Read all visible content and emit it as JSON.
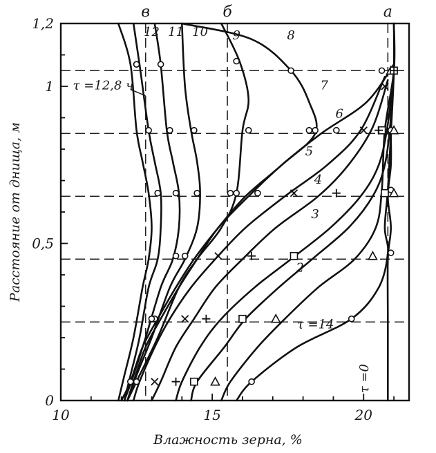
{
  "chart_data": {
    "type": "line",
    "xlabel": "Влажность зерна, %",
    "ylabel": "Расстояние от днища, м",
    "xlim": [
      10,
      21.5
    ],
    "ylim": [
      0,
      1.2
    ],
    "x_ticks": [
      "10",
      "15",
      "20"
    ],
    "y_ticks": [
      "0",
      "0,5",
      "1",
      "1,2"
    ],
    "grid": false,
    "reference_levels_y": [
      0.25,
      0.45,
      0.65,
      0.85,
      1.05
    ],
    "top_labels": [
      {
        "text": "в",
        "x": 12.8
      },
      {
        "text": "б",
        "x": 15.5
      },
      {
        "text": "а",
        "x": 20.8
      }
    ],
    "annotations": [
      {
        "text": "τ =12,8 ч",
        "x": 10.4,
        "y": 0.99
      },
      {
        "text": "τ =14",
        "x": 17.8,
        "y": 0.23
      },
      {
        "text": "τ =0",
        "x": 20.15,
        "y": 0.07
      }
    ],
    "series": [
      {
        "name": "τ =0",
        "x": [
          20.8,
          20.8,
          20.8,
          20.9,
          20.8,
          20.9,
          20.9,
          20.9,
          21.0,
          21.0
        ],
        "y": [
          0.0,
          0.25,
          0.45,
          0.55,
          0.65,
          0.75,
          0.85,
          0.95,
          1.05,
          1.2
        ],
        "markers": [
          [
            21.0,
            1.05
          ]
        ],
        "marker": "circle"
      },
      {
        "name": "1",
        "x": [
          15.8,
          16.3,
          17.8,
          19.6,
          20.5,
          20.8,
          20.7,
          20.8,
          20.9,
          21.0,
          21.0
        ],
        "y": [
          0.0,
          0.06,
          0.17,
          0.26,
          0.36,
          0.47,
          0.55,
          0.67,
          0.85,
          1.05,
          1.2
        ],
        "markers": [
          [
            16.3,
            0.06
          ],
          [
            19.6,
            0.26
          ],
          [
            20.9,
            0.47
          ],
          [
            20.9,
            0.67
          ],
          [
            20.9,
            0.86
          ]
        ],
        "marker": "circle"
      },
      {
        "name": "2",
        "x": [
          15.3,
          15.6,
          16.5,
          17.4,
          18.5,
          19.7,
          20.4,
          20.6,
          20.7,
          21.0,
          21.0
        ],
        "y": [
          0.0,
          0.06,
          0.17,
          0.26,
          0.36,
          0.45,
          0.55,
          0.67,
          0.86,
          1.05,
          1.2
        ],
        "markers": [
          [
            15.1,
            0.06
          ],
          [
            17.1,
            0.26
          ],
          [
            20.3,
            0.46
          ],
          [
            21.0,
            0.66
          ],
          [
            21.0,
            0.86
          ],
          [
            20.9,
            1.05
          ]
        ],
        "marker": "triangle"
      },
      {
        "name": "3",
        "x": [
          14.3,
          14.5,
          15.4,
          16.1,
          17.2,
          18.3,
          19.5,
          20.3,
          20.7,
          20.9,
          21.0
        ],
        "y": [
          0.0,
          0.06,
          0.17,
          0.26,
          0.36,
          0.45,
          0.55,
          0.65,
          0.75,
          0.9,
          1.05
        ],
        "markers": [
          [
            14.4,
            0.06
          ],
          [
            16.0,
            0.26
          ],
          [
            17.7,
            0.46
          ],
          [
            20.7,
            0.66
          ],
          [
            20.6,
            0.86
          ],
          [
            21.0,
            1.05
          ]
        ],
        "marker": "square"
      },
      {
        "name": "4",
        "x": [
          13.8,
          14.0,
          14.6,
          15.3,
          16.4,
          17.6,
          18.9,
          19.9,
          20.5,
          20.8,
          21.0
        ],
        "y": [
          0.0,
          0.06,
          0.17,
          0.26,
          0.36,
          0.45,
          0.55,
          0.65,
          0.75,
          0.88,
          1.05
        ],
        "markers": [
          [
            13.8,
            0.06
          ],
          [
            14.8,
            0.26
          ],
          [
            16.3,
            0.46
          ],
          [
            19.1,
            0.66
          ],
          [
            20.5,
            0.86
          ],
          [
            21.0,
            1.05
          ]
        ],
        "marker": "plus"
      },
      {
        "name": "5",
        "x": [
          13.0,
          13.3,
          13.8,
          14.4,
          15.1,
          16.0,
          17.1,
          18.5,
          19.5,
          20.3,
          20.8
        ],
        "y": [
          0.0,
          0.06,
          0.17,
          0.26,
          0.36,
          0.45,
          0.55,
          0.65,
          0.75,
          0.87,
          1.02
        ],
        "markers": [
          [
            13.1,
            0.06
          ],
          [
            14.1,
            0.26
          ],
          [
            15.2,
            0.46
          ],
          [
            17.7,
            0.66
          ],
          [
            20.0,
            0.86
          ],
          [
            20.7,
            1.0
          ]
        ],
        "marker": "cross"
      },
      {
        "name": "6",
        "x": [
          12.4,
          12.6,
          13.1,
          13.6,
          14.3,
          15.1,
          16.1,
          17.4,
          18.8,
          19.9,
          20.7
        ],
        "y": [
          0.0,
          0.06,
          0.17,
          0.26,
          0.36,
          0.45,
          0.55,
          0.65,
          0.75,
          0.86,
          1.03
        ],
        "markers": [
          [
            12.5,
            0.06
          ],
          [
            13.1,
            0.26
          ],
          [
            14.1,
            0.46
          ],
          [
            16.5,
            0.66
          ],
          [
            19.1,
            0.86
          ],
          [
            20.6,
            1.05
          ]
        ],
        "marker": "circle"
      },
      {
        "name": "7",
        "x": [
          12.2,
          12.4,
          12.8,
          13.3,
          13.9,
          14.5,
          15.2,
          16.2,
          17.3,
          18.6,
          20.1,
          21.0
        ],
        "y": [
          0.0,
          0.06,
          0.17,
          0.26,
          0.36,
          0.45,
          0.55,
          0.65,
          0.75,
          0.85,
          0.95,
          1.07
        ],
        "markers": [
          [
            12.3,
            0.06
          ],
          [
            13.0,
            0.26
          ],
          [
            13.8,
            0.46
          ],
          [
            15.8,
            0.66
          ],
          [
            18.2,
            0.86
          ]
        ],
        "marker": "circle"
      },
      {
        "name": "8",
        "x": [
          12.0,
          12.3,
          12.7,
          13.2,
          13.8,
          14.4,
          15.2,
          16.1,
          17.3,
          18.4,
          18.2,
          17.6,
          16.3,
          14.0
        ],
        "y": [
          0.0,
          0.06,
          0.17,
          0.26,
          0.36,
          0.45,
          0.55,
          0.65,
          0.75,
          0.85,
          0.95,
          1.05,
          1.15,
          1.2
        ],
        "markers": [
          [
            18.4,
            0.86
          ],
          [
            17.6,
            1.05
          ]
        ],
        "marker": "circle"
      },
      {
        "name": "9",
        "x": [
          12.2,
          12.6,
          13.2,
          13.9,
          14.5,
          15.3,
          15.8,
          16.0,
          16.2,
          15.9,
          15.3
        ],
        "y": [
          0.0,
          0.08,
          0.2,
          0.36,
          0.45,
          0.55,
          0.66,
          0.86,
          0.96,
          1.08,
          1.2
        ],
        "markers": [
          [
            15.6,
            0.66
          ],
          [
            16.2,
            0.86
          ],
          [
            15.8,
            1.08
          ]
        ],
        "marker": "circle"
      },
      {
        "name": "10",
        "x": [
          12.2,
          12.5,
          13.0,
          13.6,
          14.1,
          14.5,
          14.6,
          14.5,
          14.3,
          14.1,
          14.0
        ],
        "y": [
          0.0,
          0.08,
          0.2,
          0.36,
          0.45,
          0.55,
          0.66,
          0.76,
          0.86,
          1.0,
          1.2
        ],
        "markers": [
          [
            14.5,
            0.66
          ],
          [
            14.4,
            0.86
          ]
        ],
        "marker": "circle"
      },
      {
        "name": "11",
        "x": [
          12.1,
          12.4,
          12.8,
          13.3,
          13.7,
          13.9,
          13.9,
          13.7,
          13.5,
          13.3,
          13.1
        ],
        "y": [
          0.0,
          0.08,
          0.2,
          0.36,
          0.45,
          0.55,
          0.66,
          0.76,
          0.86,
          1.07,
          1.2
        ],
        "markers": [
          [
            13.8,
            0.66
          ],
          [
            13.6,
            0.86
          ],
          [
            13.3,
            1.07
          ]
        ],
        "marker": "circle"
      },
      {
        "name": "12",
        "x": [
          12.1,
          12.3,
          12.6,
          12.9,
          13.2,
          13.3,
          13.3,
          13.1,
          12.9,
          12.6,
          12.4
        ],
        "y": [
          0.0,
          0.08,
          0.2,
          0.36,
          0.45,
          0.55,
          0.66,
          0.76,
          0.86,
          1.07,
          1.2
        ],
        "markers": [
          [
            13.2,
            0.66
          ],
          [
            12.9,
            0.86
          ],
          [
            12.5,
            1.07
          ]
        ],
        "marker": "circle"
      },
      {
        "name": "τ =12,8 ч",
        "x": [
          11.9,
          12.1,
          12.4,
          12.7,
          12.9,
          13.0,
          12.9,
          12.7,
          12.5,
          12.3,
          11.9
        ],
        "y": [
          0.0,
          0.08,
          0.2,
          0.36,
          0.45,
          0.55,
          0.66,
          0.76,
          0.86,
          1.07,
          1.2
        ],
        "markers": [
          [
            12.5,
            1.07
          ]
        ],
        "marker": "circle"
      }
    ]
  }
}
